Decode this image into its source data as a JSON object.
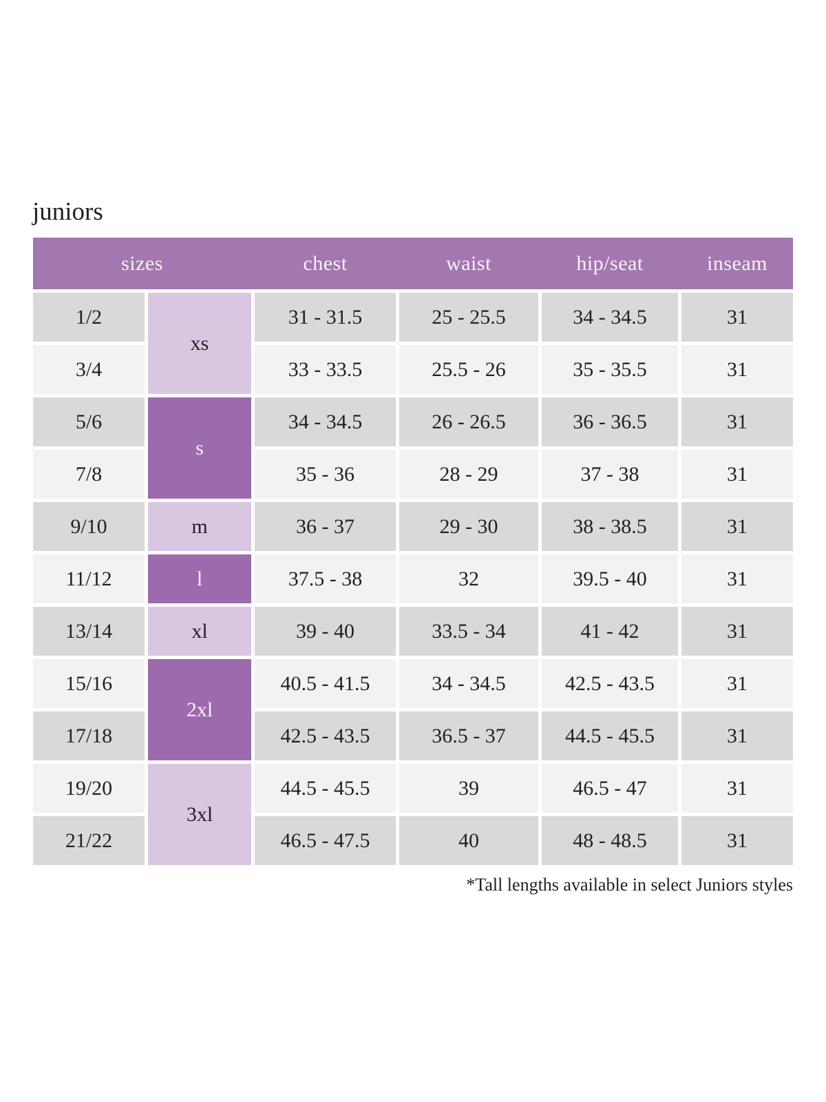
{
  "page": {
    "title": "juniors",
    "footnote": "*Tall lengths available in select Juniors styles"
  },
  "colors": {
    "header_bg": "#a377af",
    "header_text": "#f7f3f8",
    "group_dark": "#9d6aad",
    "group_light": "#d9c7e2",
    "row_dark": "#d9d9d9",
    "row_light": "#f2f2f2",
    "text": "#231f20"
  },
  "table": {
    "headers": [
      "sizes",
      "chest",
      "waist",
      "hip/seat",
      "inseam"
    ],
    "size_groups": [
      {
        "label": "xs",
        "rows": 2,
        "shade": "light"
      },
      {
        "label": "s",
        "rows": 2,
        "shade": "dark"
      },
      {
        "label": "m",
        "rows": 1,
        "shade": "light"
      },
      {
        "label": "l",
        "rows": 1,
        "shade": "dark"
      },
      {
        "label": "xl",
        "rows": 1,
        "shade": "light"
      },
      {
        "label": "2xl",
        "rows": 2,
        "shade": "dark"
      },
      {
        "label": "3xl",
        "rows": 2,
        "shade": "light"
      }
    ],
    "rows": [
      {
        "size": "1/2",
        "chest": "31 - 31.5",
        "waist": "25 - 25.5",
        "hip": "34 - 34.5",
        "inseam": "31"
      },
      {
        "size": "3/4",
        "chest": "33 - 33.5",
        "waist": "25.5 - 26",
        "hip": "35 - 35.5",
        "inseam": "31"
      },
      {
        "size": "5/6",
        "chest": "34 - 34.5",
        "waist": "26 - 26.5",
        "hip": "36 - 36.5",
        "inseam": "31"
      },
      {
        "size": "7/8",
        "chest": "35 - 36",
        "waist": "28 - 29",
        "hip": "37 - 38",
        "inseam": "31"
      },
      {
        "size": "9/10",
        "chest": "36 - 37",
        "waist": "29 - 30",
        "hip": "38 - 38.5",
        "inseam": "31"
      },
      {
        "size": "11/12",
        "chest": "37.5 - 38",
        "waist": "32",
        "hip": "39.5 - 40",
        "inseam": "31"
      },
      {
        "size": "13/14",
        "chest": "39 - 40",
        "waist": "33.5 - 34",
        "hip": "41 - 42",
        "inseam": "31"
      },
      {
        "size": "15/16",
        "chest": "40.5 - 41.5",
        "waist": "34 - 34.5",
        "hip": "42.5 - 43.5",
        "inseam": "31"
      },
      {
        "size": "17/18",
        "chest": "42.5 - 43.5",
        "waist": "36.5 - 37",
        "hip": "44.5 - 45.5",
        "inseam": "31"
      },
      {
        "size": "19/20",
        "chest": "44.5 - 45.5",
        "waist": "39",
        "hip": "46.5 - 47",
        "inseam": "31"
      },
      {
        "size": "21/22",
        "chest": "46.5 - 47.5",
        "waist": "40",
        "hip": "48 - 48.5",
        "inseam": "31"
      }
    ]
  },
  "chart_data": {
    "type": "table",
    "title": "juniors",
    "columns": [
      "sizes (numeric)",
      "sizes (letter)",
      "chest",
      "waist",
      "hip/seat",
      "inseam"
    ],
    "rows": [
      [
        "1/2",
        "xs",
        "31 - 31.5",
        "25 - 25.5",
        "34 - 34.5",
        "31"
      ],
      [
        "3/4",
        "xs",
        "33 - 33.5",
        "25.5 - 26",
        "35 - 35.5",
        "31"
      ],
      [
        "5/6",
        "s",
        "34 - 34.5",
        "26 - 26.5",
        "36 - 36.5",
        "31"
      ],
      [
        "7/8",
        "s",
        "35 - 36",
        "28 - 29",
        "37 - 38",
        "31"
      ],
      [
        "9/10",
        "m",
        "36 - 37",
        "29 - 30",
        "38 - 38.5",
        "31"
      ],
      [
        "11/12",
        "l",
        "37.5 - 38",
        "32",
        "39.5 - 40",
        "31"
      ],
      [
        "13/14",
        "xl",
        "39 - 40",
        "33.5 - 34",
        "41 - 42",
        "31"
      ],
      [
        "15/16",
        "2xl",
        "40.5 - 41.5",
        "34 - 34.5",
        "42.5 - 43.5",
        "31"
      ],
      [
        "17/18",
        "2xl",
        "42.5 - 43.5",
        "36.5 - 37",
        "44.5 - 45.5",
        "31"
      ],
      [
        "19/20",
        "3xl",
        "44.5 - 45.5",
        "39",
        "46.5 - 47",
        "31"
      ],
      [
        "21/22",
        "3xl",
        "46.5 - 47.5",
        "40",
        "48 - 48.5",
        "31"
      ]
    ],
    "footnote": "*Tall lengths available in select Juniors styles"
  }
}
